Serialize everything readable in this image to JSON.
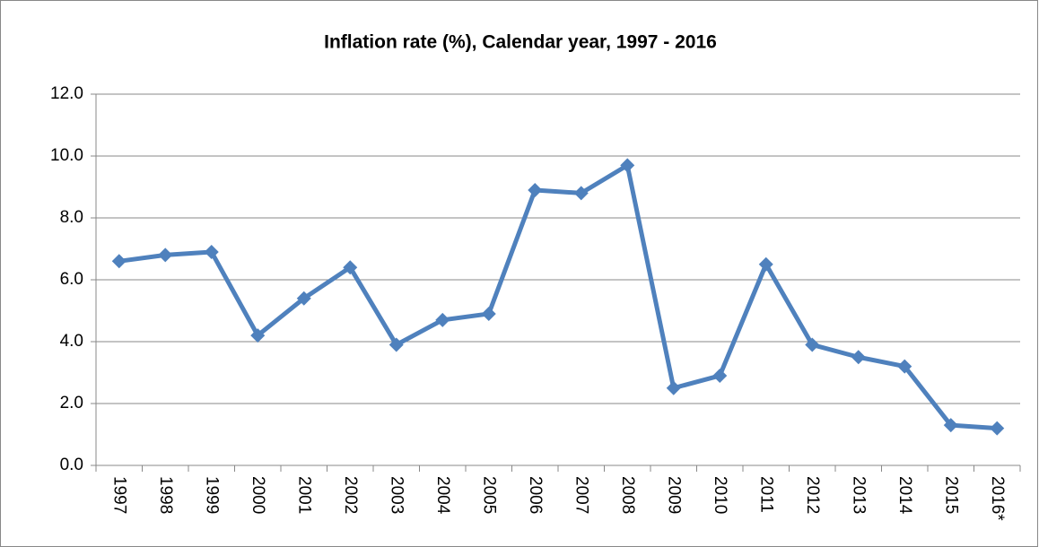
{
  "chart_data": {
    "type": "line",
    "title": "Inflation rate (%), Calendar year, 1997 - 2016",
    "categories": [
      "1997",
      "1998",
      "1999",
      "2000",
      "2001",
      "2002",
      "2003",
      "2004",
      "2005",
      "2006",
      "2007",
      "2008",
      "2009",
      "2010",
      "2011",
      "2012",
      "2013",
      "2014",
      "2015",
      "2016*"
    ],
    "series": [
      {
        "name": "Inflation rate (%)",
        "color": "#4f81bd",
        "values": [
          6.6,
          6.8,
          6.9,
          4.2,
          5.4,
          6.4,
          3.9,
          4.7,
          4.9,
          8.9,
          8.8,
          9.7,
          2.5,
          2.9,
          6.5,
          3.9,
          3.5,
          3.2,
          1.3,
          1.2
        ]
      }
    ],
    "ylim": [
      0,
      12
    ],
    "yticks": [
      {
        "value": 0,
        "label": "0.0"
      },
      {
        "value": 2,
        "label": "2.0"
      },
      {
        "value": 4,
        "label": "4.0"
      },
      {
        "value": 6,
        "label": "6.0"
      },
      {
        "value": 8,
        "label": "8.0"
      },
      {
        "value": 10,
        "label": "10.0"
      },
      {
        "value": 12,
        "label": "12.0"
      }
    ],
    "grid": true
  }
}
